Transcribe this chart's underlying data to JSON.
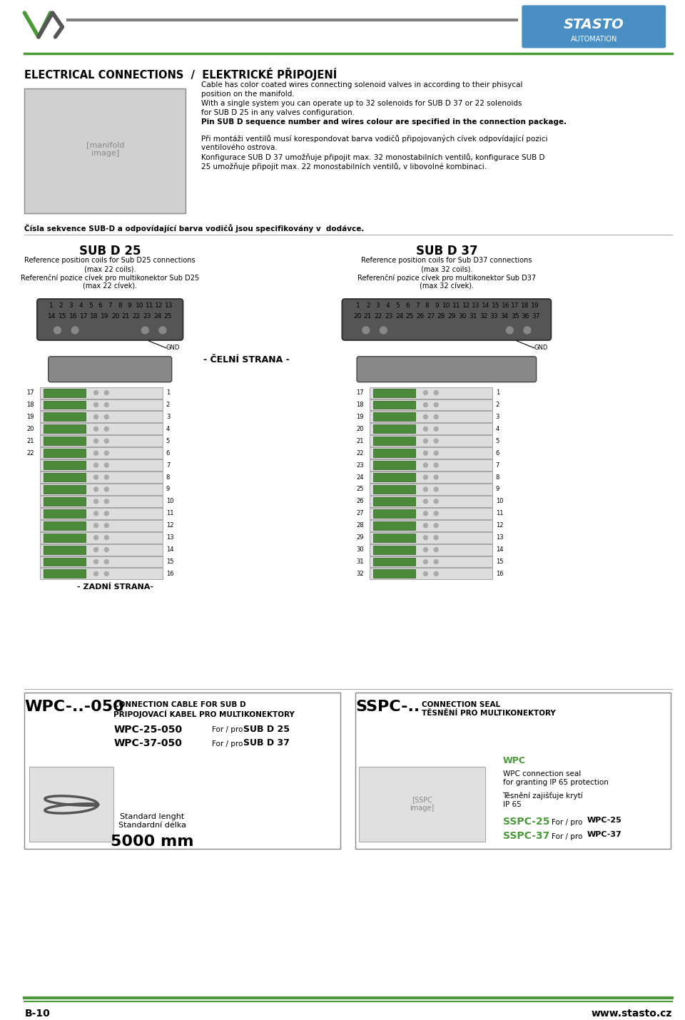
{
  "bg_color": "#ffffff",
  "page_width": 9.6,
  "page_height": 14.3,
  "header_line_color": "#808080",
  "green_color": "#4a9a3a",
  "blue_color": "#4a8fc4",
  "dark_gray": "#404040",
  "light_gray": "#c0c0c0",
  "text_color": "#222222",
  "section_title": "ELECTRICAL CONNECTIONS  /  ELEKTRICKÉ PŘIPOJENÍ",
  "para1": "Cable has color coated wires connecting solenoid valves in according to their phisycal\nposition on the manifold.\nWith a single system you can operate up to 32 solenoids for SUB D 37 or 22 solenoids\nfor SUB D 25 in any valves configuration.\nPin SUB D sequence number and wires colour are specified in the connection package.",
  "para1_bold_line": "Pin SUB D sequence number and wires colour are specified in the connection package.",
  "para2": "Při montáži ventilů musí korespondovat barva vodičů připojovaných cívek odpovídající pozici\nventilového ostrova.\nKonfigurace SUB D 37 umožňuje připojit max. 32 monostabilních ventilů, konfigurace SUB D\n25 umožňuje připojit max. 22 monostabilních ventilů, v libovolné kombinaci.",
  "para3": "Čísla sekvence SUB-D a odpovídající barva vodičů jsou specifikovány v  dodávce.",
  "sub25_title": "SUB D 25",
  "sub25_line1": "Reference position coils for Sub D25 connections",
  "sub25_line2": "(max 22 coils).",
  "sub25_line3": "Referenční pozice cívek pro multikonektor Sub D25",
  "sub25_line4": "(max 22 cívek).",
  "sub25_pins_top": [
    "1",
    "2",
    "3",
    "4",
    "5",
    "6",
    "7",
    "8",
    "9",
    "10",
    "11",
    "12",
    "13"
  ],
  "sub25_pins_bot": [
    "14",
    "15",
    "16",
    "17",
    "18",
    "19",
    "20",
    "21",
    "22",
    "23",
    "24",
    "25"
  ],
  "sub25_gnd": "GND",
  "sub37_title": "SUB D 37",
  "sub37_line1": "Reference position coils for Sub D37 connections",
  "sub37_line2": "(max 32 coils).",
  "sub37_line3": "Referenční pozice cívek pro multikonektor Sub D37",
  "sub37_line4": "(max 32 cívek).",
  "sub37_pins_top": [
    "1",
    "2",
    "3",
    "4",
    "5",
    "6",
    "7",
    "8",
    "9",
    "10",
    "11",
    "12",
    "13",
    "14",
    "15",
    "16",
    "17",
    "18",
    "19"
  ],
  "sub37_pins_bot": [
    "20",
    "21",
    "22",
    "23",
    "24",
    "25",
    "26",
    "27",
    "28",
    "29",
    "30",
    "31",
    "32",
    "33",
    "34",
    "35",
    "36",
    "37"
  ],
  "sub37_gnd": "GND",
  "front_label": "- ČELNÍ STRANA -",
  "back_label": "- ZADNÍ STRANA-",
  "sub25_left_nums": [
    "17",
    "18",
    "19",
    "20",
    "21",
    "22"
  ],
  "sub25_right_nums": [
    "1",
    "2",
    "3",
    "4",
    "5",
    "6",
    "7",
    "8",
    "9",
    "10",
    "11",
    "12",
    "13",
    "14",
    "15",
    "16"
  ],
  "sub37_left_nums": [
    "17",
    "18",
    "19",
    "20",
    "21",
    "22",
    "23",
    "24",
    "25",
    "26",
    "27",
    "28",
    "29",
    "30",
    "31",
    "32"
  ],
  "sub37_right_nums": [
    "1",
    "2",
    "3",
    "4",
    "5",
    "6",
    "7",
    "8",
    "9",
    "10",
    "11",
    "12",
    "13",
    "14",
    "15",
    "16"
  ],
  "wpc_title": "WPC-..-050",
  "wpc_sub1": "CONNECTION CABLE FOR SUB D",
  "wpc_sub2": "PŘIPOJOVACÍ KABEL PRO MULTIKONEKTORY",
  "wpc_25": "WPC-25-050",
  "wpc_25_text": "For / pro SUB D 25",
  "wpc_37": "WPC-37-050",
  "wpc_37_text": "For / pro SUB D 37",
  "std_lenght": "Standard lenght\nStandardní délka",
  "std_value": "5000 mm",
  "sspc_title": "SSPC-..",
  "sspc_sub1": "CONNECTION SEAL",
  "sspc_sub2": "TĚSNĚNÍ PRO MULTIKONEKTORY",
  "sspc_wpc": "WPC",
  "sspc_desc1": "WPC connection seal",
  "sspc_desc2": "for granting IP 65 protection",
  "sspc_desc3": "Těsnění zajišťuje krytí\nIP 65",
  "sspc_25": "SSPC-25",
  "sspc_25_text": "For / pro WPC-25",
  "sspc_37": "SSPC-37",
  "sspc_37_text": "For / pro WPC-37",
  "footer_left": "B-10",
  "footer_right": "www.stasto.cz"
}
